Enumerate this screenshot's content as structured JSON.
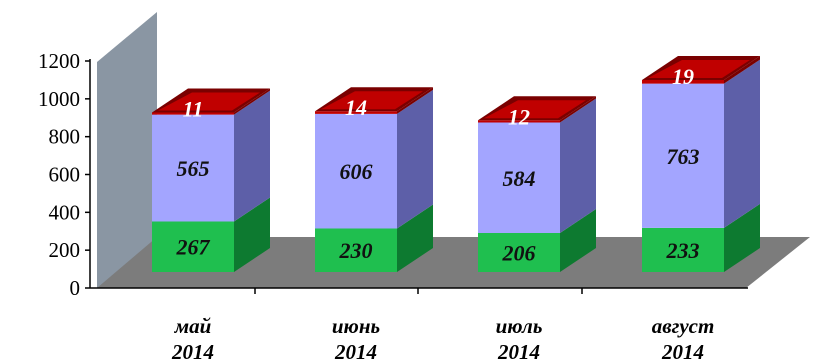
{
  "chart_data": {
    "type": "bar",
    "stacked": true,
    "three_d": true,
    "categories": [
      [
        "май",
        "2014"
      ],
      [
        "июнь",
        "2014"
      ],
      [
        "июль",
        "2014"
      ],
      [
        "август",
        "2014"
      ]
    ],
    "series": [
      {
        "values": [
          267,
          230,
          206,
          233
        ],
        "color": "#1fbf4f",
        "side_color": "#0d7a30",
        "label_style": "dark"
      },
      {
        "values": [
          565,
          606,
          584,
          763
        ],
        "color": "#a3a5ff",
        "side_color": "#5d5fa8",
        "label_style": "dark"
      },
      {
        "values": [
          11,
          14,
          12,
          19
        ],
        "color": "#c00000",
        "side_color": "#7a0000",
        "label_style": "light"
      }
    ],
    "y_ticks": [
      0,
      200,
      400,
      600,
      800,
      1000,
      1200
    ],
    "ylim": [
      0,
      1200
    ],
    "grid": false,
    "legend": "none",
    "colors": {
      "back_wall": "#8a96a3",
      "floor": "#7c7c7c"
    }
  }
}
